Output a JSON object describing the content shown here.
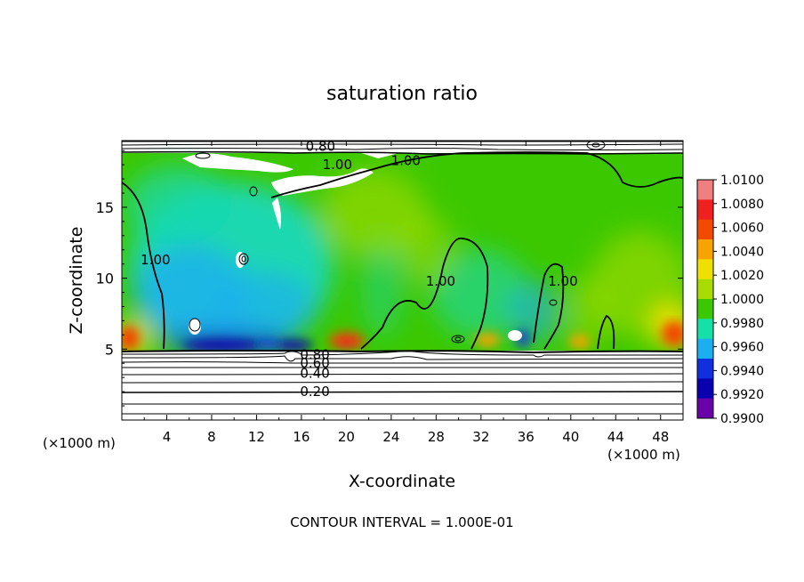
{
  "chart_data": {
    "type": "heatmap",
    "title": "saturation ratio",
    "xlabel": "X-coordinate",
    "ylabel": "Z-coordinate",
    "x_unit": "(×1000 m)",
    "xlim": [
      0,
      50
    ],
    "ylim": [
      0,
      19.7
    ],
    "x_ticks": [
      4,
      8,
      12,
      16,
      20,
      24,
      28,
      32,
      36,
      40,
      44,
      48
    ],
    "y_ticks": [
      5,
      10,
      15
    ],
    "footer": "CONTOUR INTERVAL = 1.000E-01",
    "colorbar": {
      "levels": [
        "1.0100",
        "1.0080",
        "1.0060",
        "1.0040",
        "1.0020",
        "1.0000",
        "0.9980",
        "0.9960",
        "0.9940",
        "0.9920",
        "0.9900"
      ],
      "colors": [
        "#f08080",
        "#ee2020",
        "#f24a00",
        "#f7a400",
        "#f0e000",
        "#a8dc00",
        "#3cc800",
        "#15e0a8",
        "#1caff0",
        "#1030e0",
        "#0800b0",
        "#6a00a8"
      ]
    },
    "contour_labels": [
      {
        "text": "0.80",
        "x": 17.7,
        "z": 19.3
      },
      {
        "text": "1.00",
        "x": 19.2,
        "z": 18.0
      },
      {
        "text": "1.00",
        "x": 25.3,
        "z": 18.3
      },
      {
        "text": "1.00",
        "x": 3.0,
        "z": 11.3
      },
      {
        "text": "1.00",
        "x": 28.4,
        "z": 9.8
      },
      {
        "text": "1.00",
        "x": 39.3,
        "z": 9.8
      },
      {
        "text": "0.80",
        "x": 17.2,
        "z": 4.6
      },
      {
        "text": "0.60",
        "x": 17.2,
        "z": 4.0
      },
      {
        "text": "0.40",
        "x": 17.2,
        "z": 3.3
      },
      {
        "text": "0.20",
        "x": 17.2,
        "z": 2.0
      }
    ]
  }
}
